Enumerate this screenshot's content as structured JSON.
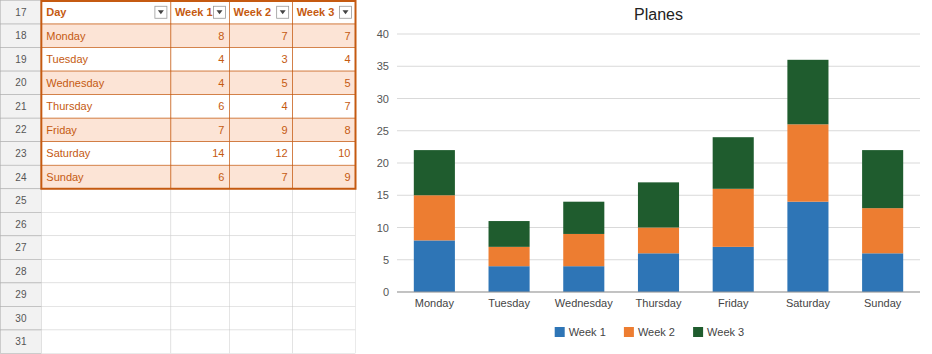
{
  "chart_data": [
    {
      "type": "bar",
      "stacked": true,
      "title": "Planes",
      "categories": [
        "Monday",
        "Tuesday",
        "Wednesday",
        "Thursday",
        "Friday",
        "Saturday",
        "Sunday"
      ],
      "series": [
        {
          "name": "Week 1",
          "color": "#2e75b6",
          "values": [
            8,
            4,
            4,
            6,
            7,
            14,
            6
          ]
        },
        {
          "name": "Week 2",
          "color": "#ed7d31",
          "values": [
            7,
            3,
            5,
            4,
            9,
            12,
            7
          ]
        },
        {
          "name": "Week 3",
          "color": "#1f5c2e",
          "values": [
            7,
            4,
            5,
            7,
            8,
            10,
            9
          ]
        }
      ],
      "ylim": [
        0,
        40
      ],
      "yticks": [
        0,
        5,
        10,
        15,
        20,
        25,
        30,
        35,
        40
      ],
      "grid": true,
      "legend": "bottom"
    },
    {
      "type": "table",
      "color": "#c55a11",
      "columns": [
        "Day",
        "Week 1",
        "Week 2",
        "Week 3"
      ],
      "row_numbers": [
        17,
        18,
        19,
        20,
        21,
        22,
        23,
        24,
        25,
        26,
        27,
        28,
        29,
        30,
        31
      ],
      "categories": [
        "Monday",
        "Tuesday",
        "Wednesday",
        "Thursday",
        "Friday",
        "Saturday",
        "Sunday"
      ],
      "series": [
        {
          "values": [
            8,
            4,
            4,
            6,
            7,
            14,
            6
          ]
        },
        {
          "values": [
            7,
            3,
            5,
            4,
            9,
            12,
            7
          ]
        },
        {
          "values": [
            7,
            4,
            5,
            7,
            8,
            10,
            9
          ]
        }
      ]
    }
  ]
}
